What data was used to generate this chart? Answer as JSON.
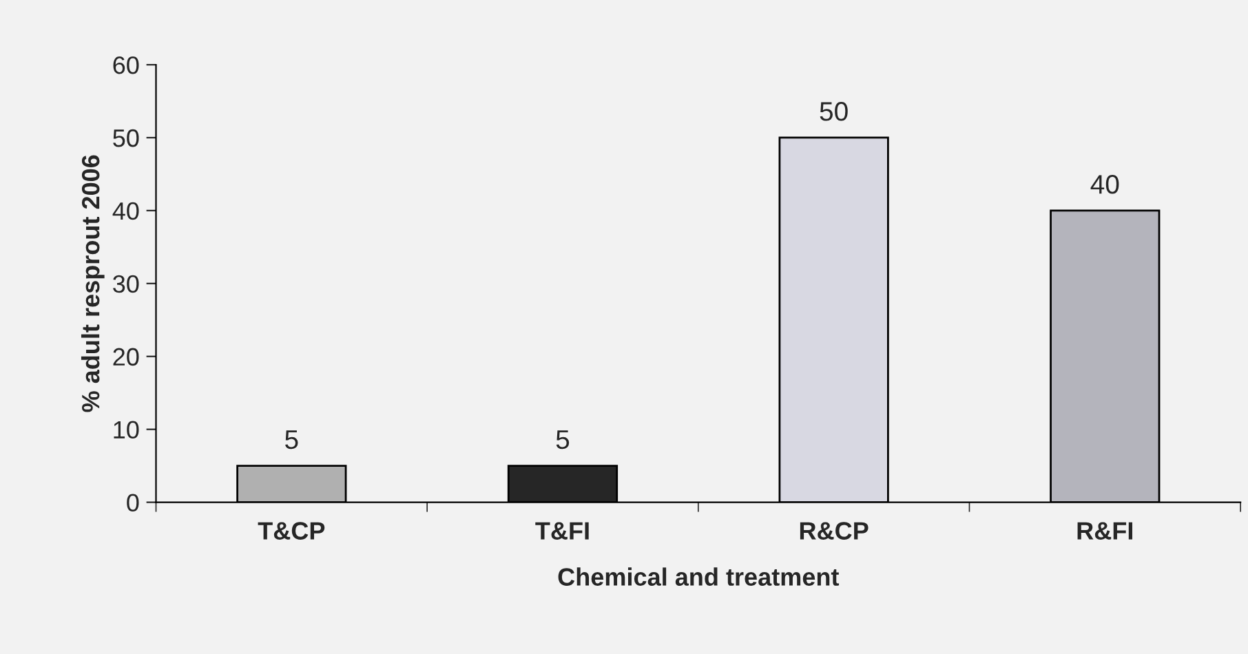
{
  "chart_data": {
    "type": "bar",
    "xlabel": "Chemical and treatment",
    "ylabel": "% adult resprout 2006",
    "categories": [
      "T&CP",
      "T&FI",
      "R&CP",
      "R&FI"
    ],
    "values": [
      5,
      5,
      50,
      40
    ],
    "colors": [
      "#b0b0b0",
      "#262626",
      "#d8d8e2",
      "#b4b4bc"
    ],
    "ylim": [
      0,
      60
    ],
    "yticks": [
      0,
      10,
      20,
      30,
      40,
      50,
      60
    ],
    "data_labels": true,
    "grid": false,
    "legend": false
  }
}
